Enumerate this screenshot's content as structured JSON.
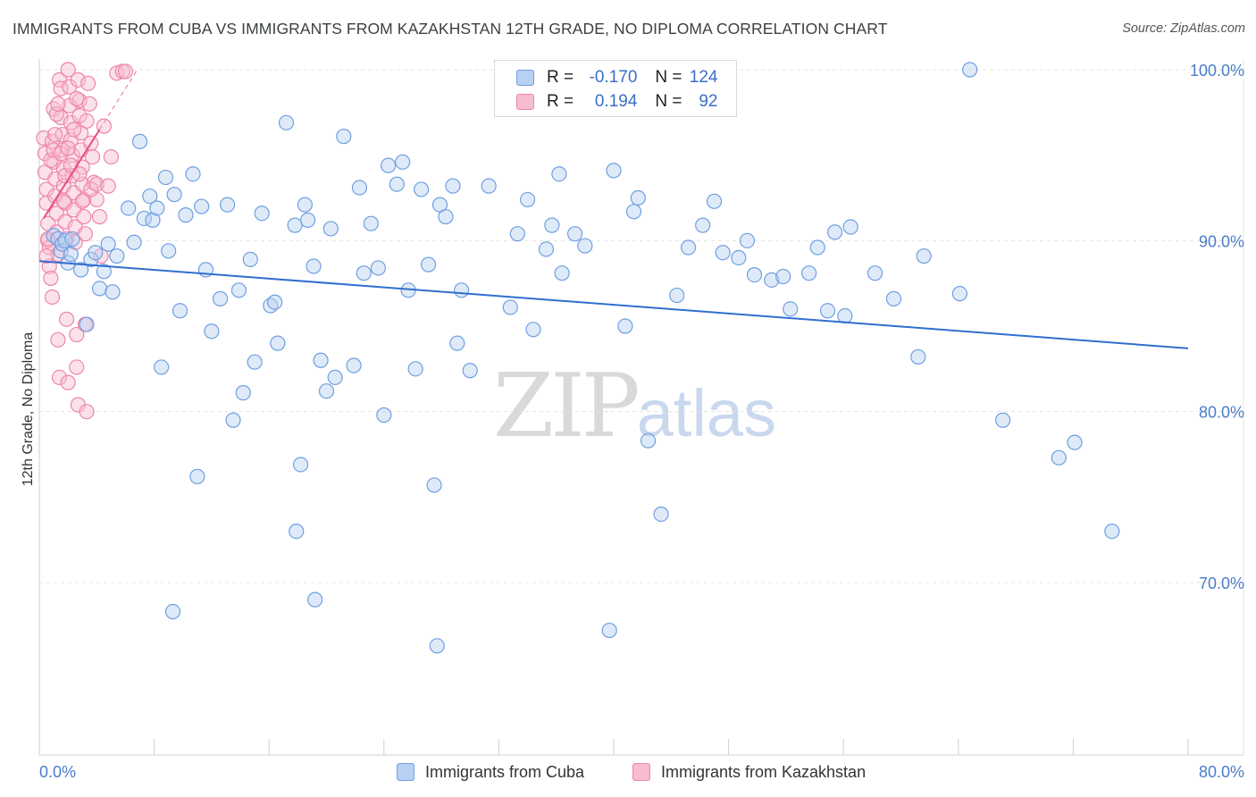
{
  "title": "IMMIGRANTS FROM CUBA VS IMMIGRANTS FROM KAZAKHSTAN 12TH GRADE, NO DIPLOMA CORRELATION CHART",
  "source": "Source: ZipAtlas.com",
  "watermark": {
    "zip": "ZIP",
    "atlas": "atlas"
  },
  "legend": {
    "r_label": "R =",
    "n_label": "N =",
    "cuba": {
      "r": "-0.170",
      "n": "124"
    },
    "kazakhstan": {
      "r": "0.194",
      "n": "92"
    }
  },
  "colors": {
    "cuba_fill": "#b8d0f2",
    "cuba_stroke": "#6f9fe0",
    "cuba_line": "#2f6fd0",
    "kaz_fill": "#f7bcd0",
    "kaz_stroke": "#ee85aa",
    "kaz_line": "#e8507f",
    "tick_text": "#4a7cc9",
    "grid": "#e3e3e3"
  },
  "chart_data": {
    "type": "scatter",
    "title": "IMMIGRANTS FROM CUBA VS IMMIGRANTS FROM KAZAKHSTAN 12TH GRADE, NO DIPLOMA CORRELATION CHART",
    "xlabel": "",
    "ylabel": "12th Grade, No Diploma",
    "xlim": [
      0,
      80
    ],
    "ylim": [
      60,
      100
    ],
    "x_tick_labels": [
      {
        "value": 0,
        "label": "0.0%"
      },
      {
        "value": 80,
        "label": "80.0%"
      }
    ],
    "y_tick_labels": [
      {
        "value": 70,
        "label": "70.0%"
      },
      {
        "value": 80,
        "label": "80.0%"
      },
      {
        "value": 90,
        "label": "90.0%"
      },
      {
        "value": 100,
        "label": "100.0%"
      }
    ],
    "grid": true,
    "legend_position": "top-center",
    "series": [
      {
        "name": "Immigrants from Cuba",
        "r": -0.17,
        "n": 124,
        "trend": {
          "x": [
            0,
            80
          ],
          "y": [
            88.8,
            83.7
          ]
        },
        "points": [
          [
            1.0,
            90.3
          ],
          [
            1.3,
            90.1
          ],
          [
            1.5,
            89.4
          ],
          [
            1.6,
            89.8
          ],
          [
            1.8,
            90.0
          ],
          [
            2.0,
            88.7
          ],
          [
            2.2,
            89.2
          ],
          [
            2.3,
            90.1
          ],
          [
            2.9,
            88.3
          ],
          [
            3.3,
            85.1
          ],
          [
            3.6,
            88.9
          ],
          [
            3.9,
            89.3
          ],
          [
            4.2,
            87.2
          ],
          [
            4.5,
            88.2
          ],
          [
            4.8,
            89.8
          ],
          [
            5.1,
            87.0
          ],
          [
            5.4,
            89.1
          ],
          [
            6.2,
            91.9
          ],
          [
            6.6,
            89.9
          ],
          [
            7.0,
            95.8
          ],
          [
            7.3,
            91.3
          ],
          [
            7.7,
            92.6
          ],
          [
            7.9,
            91.2
          ],
          [
            8.2,
            91.9
          ],
          [
            8.5,
            82.6
          ],
          [
            8.8,
            93.7
          ],
          [
            9.0,
            89.4
          ],
          [
            9.4,
            92.7
          ],
          [
            9.8,
            85.9
          ],
          [
            10.2,
            91.5
          ],
          [
            10.7,
            93.9
          ],
          [
            11.0,
            76.2
          ],
          [
            11.3,
            92.0
          ],
          [
            11.6,
            88.3
          ],
          [
            12.0,
            84.7
          ],
          [
            12.6,
            86.6
          ],
          [
            13.1,
            92.1
          ],
          [
            13.5,
            79.5
          ],
          [
            13.9,
            87.1
          ],
          [
            14.2,
            81.1
          ],
          [
            14.7,
            88.9
          ],
          [
            15.0,
            82.9
          ],
          [
            15.5,
            91.6
          ],
          [
            16.1,
            86.2
          ],
          [
            16.4,
            86.4
          ],
          [
            16.6,
            84.0
          ],
          [
            17.2,
            96.9
          ],
          [
            17.8,
            90.9
          ],
          [
            18.2,
            76.9
          ],
          [
            18.5,
            92.1
          ],
          [
            18.7,
            91.2
          ],
          [
            19.1,
            88.5
          ],
          [
            19.6,
            83.0
          ],
          [
            20.0,
            81.2
          ],
          [
            20.3,
            90.7
          ],
          [
            20.6,
            82.0
          ],
          [
            21.2,
            96.1
          ],
          [
            21.9,
            82.7
          ],
          [
            22.3,
            93.1
          ],
          [
            22.6,
            88.1
          ],
          [
            23.1,
            91.0
          ],
          [
            23.6,
            88.4
          ],
          [
            24.0,
            79.8
          ],
          [
            24.3,
            94.4
          ],
          [
            24.9,
            93.3
          ],
          [
            25.3,
            94.6
          ],
          [
            25.7,
            87.1
          ],
          [
            26.2,
            82.5
          ],
          [
            26.6,
            93.0
          ],
          [
            27.1,
            88.6
          ],
          [
            27.5,
            75.7
          ],
          [
            27.9,
            92.1
          ],
          [
            28.3,
            91.4
          ],
          [
            28.8,
            93.2
          ],
          [
            29.1,
            84.0
          ],
          [
            29.4,
            87.1
          ],
          [
            30.0,
            82.4
          ],
          [
            31.3,
            93.2
          ],
          [
            32.8,
            86.1
          ],
          [
            33.3,
            90.4
          ],
          [
            34.0,
            92.4
          ],
          [
            34.4,
            84.8
          ],
          [
            35.3,
            89.5
          ],
          [
            35.7,
            90.9
          ],
          [
            36.2,
            93.9
          ],
          [
            36.4,
            88.1
          ],
          [
            37.3,
            90.4
          ],
          [
            38.0,
            89.7
          ],
          [
            40.0,
            94.1
          ],
          [
            40.8,
            85.0
          ],
          [
            41.4,
            91.7
          ],
          [
            41.7,
            92.5
          ],
          [
            42.4,
            78.3
          ],
          [
            43.3,
            74.0
          ],
          [
            44.4,
            86.8
          ],
          [
            45.2,
            89.6
          ],
          [
            46.2,
            90.9
          ],
          [
            47.0,
            92.3
          ],
          [
            47.6,
            89.3
          ],
          [
            48.7,
            89.0
          ],
          [
            49.3,
            90.0
          ],
          [
            49.8,
            88.0
          ],
          [
            51.0,
            87.7
          ],
          [
            51.8,
            87.9
          ],
          [
            52.3,
            86.0
          ],
          [
            53.6,
            88.1
          ],
          [
            54.2,
            89.6
          ],
          [
            54.9,
            85.9
          ],
          [
            55.4,
            90.5
          ],
          [
            56.1,
            85.6
          ],
          [
            56.5,
            90.8
          ],
          [
            58.2,
            88.1
          ],
          [
            59.5,
            86.6
          ],
          [
            61.2,
            83.2
          ],
          [
            61.6,
            89.1
          ],
          [
            64.1,
            86.9
          ],
          [
            64.8,
            100.0
          ],
          [
            67.1,
            79.5
          ],
          [
            71.0,
            77.3
          ],
          [
            72.1,
            78.2
          ],
          [
            74.7,
            73.0
          ],
          [
            9.3,
            68.3
          ],
          [
            17.9,
            73.0
          ],
          [
            19.2,
            69.0
          ],
          [
            27.7,
            66.3
          ],
          [
            39.7,
            67.2
          ]
        ]
      },
      {
        "name": "Immigrants from Kazakhstan",
        "r": 0.194,
        "n": 92,
        "trend": {
          "x": [
            0.3,
            4.2
          ],
          "y": [
            91.3,
            96.5
          ]
        },
        "points": [
          [
            0.3,
            96.0
          ],
          [
            0.4,
            95.1
          ],
          [
            0.4,
            94.0
          ],
          [
            0.5,
            93.0
          ],
          [
            0.5,
            92.2
          ],
          [
            0.6,
            91.0
          ],
          [
            0.6,
            90.0
          ],
          [
            0.7,
            89.6
          ],
          [
            0.7,
            88.5
          ],
          [
            0.8,
            87.8
          ],
          [
            0.9,
            86.7
          ],
          [
            0.9,
            95.8
          ],
          [
            1.0,
            97.7
          ],
          [
            1.0,
            94.6
          ],
          [
            1.1,
            93.6
          ],
          [
            1.1,
            92.6
          ],
          [
            1.2,
            91.6
          ],
          [
            1.2,
            90.5
          ],
          [
            1.3,
            89.2
          ],
          [
            1.3,
            84.2
          ],
          [
            1.4,
            82.0
          ],
          [
            1.4,
            99.4
          ],
          [
            1.5,
            98.9
          ],
          [
            1.5,
            97.2
          ],
          [
            1.6,
            96.2
          ],
          [
            1.6,
            95.3
          ],
          [
            1.7,
            94.2
          ],
          [
            1.7,
            93.2
          ],
          [
            1.8,
            92.2
          ],
          [
            1.8,
            91.1
          ],
          [
            1.9,
            90.1
          ],
          [
            1.9,
            85.4
          ],
          [
            2.0,
            81.7
          ],
          [
            2.0,
            100.0
          ],
          [
            2.1,
            99.0
          ],
          [
            2.1,
            97.9
          ],
          [
            2.2,
            96.9
          ],
          [
            2.2,
            95.9
          ],
          [
            2.3,
            95.0
          ],
          [
            2.3,
            93.8
          ],
          [
            2.4,
            92.8
          ],
          [
            2.4,
            91.8
          ],
          [
            2.5,
            90.8
          ],
          [
            2.5,
            89.9
          ],
          [
            2.6,
            84.5
          ],
          [
            2.6,
            82.6
          ],
          [
            2.7,
            80.4
          ],
          [
            2.7,
            99.4
          ],
          [
            2.8,
            98.2
          ],
          [
            2.8,
            97.3
          ],
          [
            2.9,
            96.3
          ],
          [
            2.9,
            95.3
          ],
          [
            3.0,
            94.3
          ],
          [
            3.0,
            93.3
          ],
          [
            3.1,
            92.4
          ],
          [
            3.1,
            91.4
          ],
          [
            3.2,
            90.4
          ],
          [
            3.2,
            85.1
          ],
          [
            3.3,
            80.0
          ],
          [
            3.4,
            99.2
          ],
          [
            3.5,
            98.0
          ],
          [
            3.6,
            95.7
          ],
          [
            3.7,
            94.9
          ],
          [
            3.8,
            93.4
          ],
          [
            4.0,
            92.4
          ],
          [
            4.2,
            91.4
          ],
          [
            4.3,
            89.1
          ],
          [
            0.5,
            89.1
          ],
          [
            0.6,
            90.1
          ],
          [
            0.8,
            94.7
          ],
          [
            1.0,
            95.3
          ],
          [
            1.1,
            96.2
          ],
          [
            1.2,
            97.4
          ],
          [
            1.3,
            98.0
          ],
          [
            1.5,
            95.1
          ],
          [
            1.7,
            92.3
          ],
          [
            1.8,
            93.8
          ],
          [
            2.0,
            95.4
          ],
          [
            2.2,
            94.4
          ],
          [
            2.4,
            96.5
          ],
          [
            2.6,
            98.3
          ],
          [
            2.8,
            93.9
          ],
          [
            3.0,
            92.3
          ],
          [
            3.3,
            97.0
          ],
          [
            3.6,
            93.0
          ],
          [
            4.0,
            93.3
          ],
          [
            4.5,
            96.7
          ],
          [
            4.8,
            93.2
          ],
          [
            5.0,
            94.9
          ],
          [
            5.4,
            99.8
          ],
          [
            5.8,
            99.9
          ],
          [
            6.0,
            99.9
          ]
        ]
      }
    ]
  },
  "bottom_legend": {
    "cuba": "Immigrants from Cuba",
    "kazakhstan": "Immigrants from Kazakhstan"
  }
}
